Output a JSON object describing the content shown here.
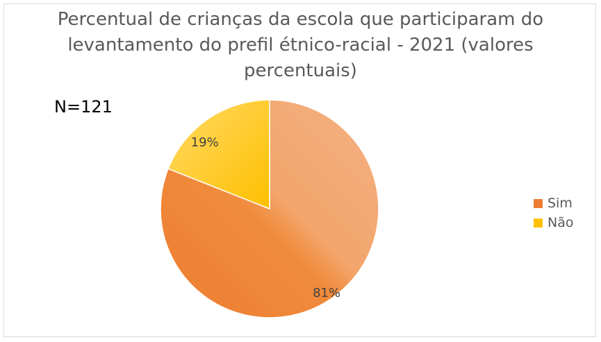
{
  "chart_data": {
    "type": "pie",
    "title_lines": [
      "Percentual de crianças da escola que participaram do",
      "levantamento do prefil étnico-racial - 2021 (valores",
      "percentuais)"
    ],
    "annotation": "N=121",
    "categories": [
      "Sim",
      "Não"
    ],
    "values": [
      81,
      19
    ],
    "data_labels": [
      "81%",
      "19%"
    ],
    "colors": [
      "#ED7D31",
      "#FFC000"
    ],
    "legend_position": "right"
  }
}
